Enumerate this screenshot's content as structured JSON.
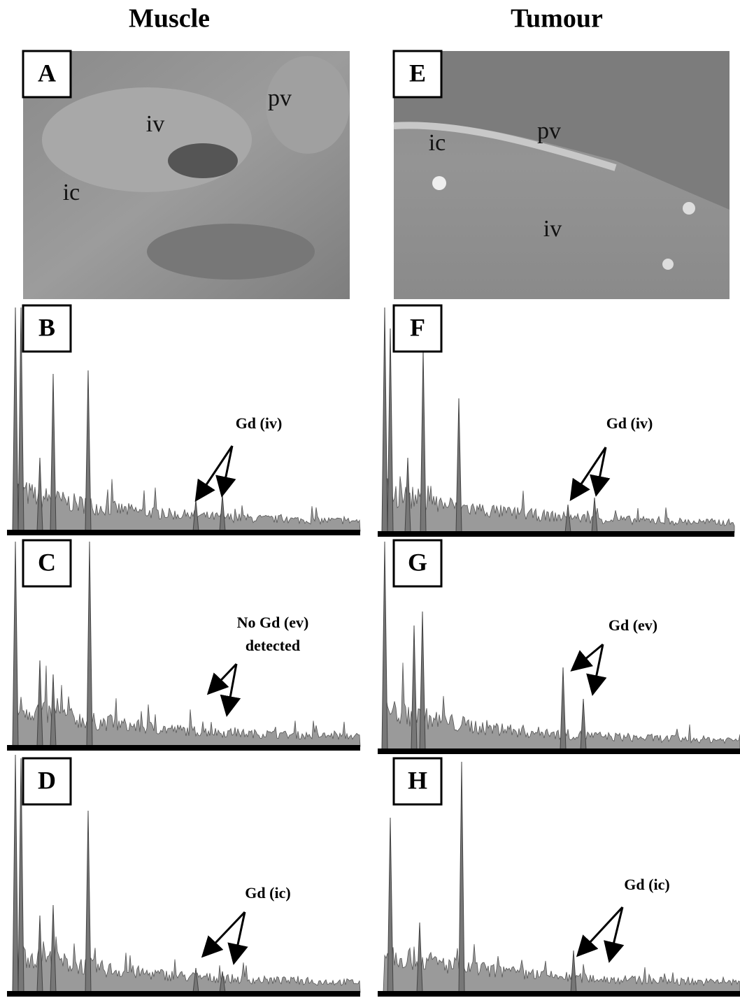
{
  "columns": [
    {
      "title": "Muscle",
      "image": {
        "label": "A",
        "annotations": [
          "pv",
          "iv",
          "ic"
        ]
      },
      "spectra": [
        {
          "label": "B",
          "annotation": [
            "Gd (iv)"
          ]
        },
        {
          "label": "C",
          "annotation": [
            "No Gd (ev)",
            "detected"
          ]
        },
        {
          "label": "D",
          "annotation": [
            "Gd (ic)"
          ]
        }
      ]
    },
    {
      "title": "Tumour",
      "image": {
        "label": "E",
        "annotations": [
          "ic",
          "pv",
          "iv"
        ]
      },
      "spectra": [
        {
          "label": "F",
          "annotation": [
            "Gd (iv)"
          ]
        },
        {
          "label": "G",
          "annotation": [
            "Gd (ev)"
          ]
        },
        {
          "label": "H",
          "annotation": [
            "Gd (ic)"
          ]
        }
      ]
    }
  ]
}
